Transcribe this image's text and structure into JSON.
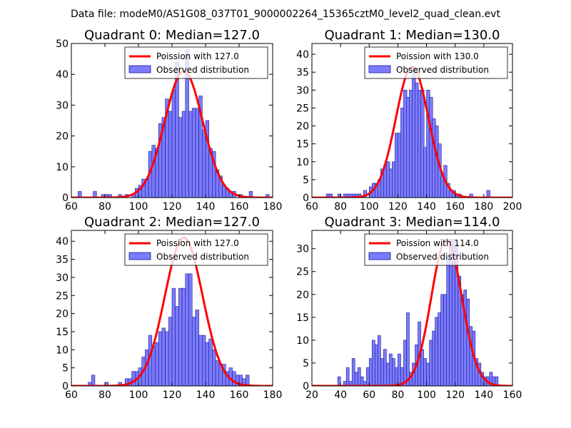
{
  "figure_title": "Data file: modeM0/AS1G08_037T01_9000002264_15365cztM0_level2_quad_clean.evt",
  "colors": {
    "hist_fill": "#7b7bff",
    "hist_edge": "#1a1a8c",
    "curve": "#ff0000"
  },
  "chart_data": [
    {
      "type": "bar",
      "title": "Quadrant 0: Median=127.0",
      "xlim": [
        60,
        180
      ],
      "ylim": [
        0,
        50
      ],
      "xticks": [
        60,
        80,
        100,
        120,
        140,
        160,
        180
      ],
      "yticks": [
        0,
        10,
        20,
        30,
        40,
        50
      ],
      "legend": [
        "Poission with 127.0",
        "Observed distribution"
      ],
      "legend_position": "top-right",
      "bin_width": 2,
      "bins": [
        [
          64,
          2
        ],
        [
          73,
          2
        ],
        [
          78,
          1
        ],
        [
          80,
          1
        ],
        [
          82,
          1
        ],
        [
          88,
          1
        ],
        [
          92,
          1
        ],
        [
          96,
          1
        ],
        [
          98,
          3
        ],
        [
          100,
          4
        ],
        [
          102,
          6
        ],
        [
          104,
          6
        ],
        [
          106,
          15
        ],
        [
          108,
          17
        ],
        [
          110,
          16
        ],
        [
          112,
          24
        ],
        [
          114,
          26
        ],
        [
          116,
          32
        ],
        [
          118,
          28
        ],
        [
          120,
          35
        ],
        [
          122,
          44
        ],
        [
          124,
          26
        ],
        [
          126,
          28
        ],
        [
          128,
          48
        ],
        [
          130,
          28
        ],
        [
          132,
          29
        ],
        [
          134,
          29
        ],
        [
          136,
          33
        ],
        [
          138,
          22
        ],
        [
          140,
          25
        ],
        [
          142,
          16
        ],
        [
          144,
          15
        ],
        [
          146,
          9
        ],
        [
          148,
          7
        ],
        [
          150,
          4
        ],
        [
          152,
          3
        ],
        [
          154,
          2
        ],
        [
          156,
          2
        ],
        [
          160,
          1
        ],
        [
          166,
          2
        ],
        [
          176,
          1
        ]
      ],
      "curve": {
        "mean": 127,
        "peak": 41.0
      }
    },
    {
      "type": "bar",
      "title": "Quadrant 1: Median=130.0",
      "xlim": [
        60,
        200
      ],
      "ylim": [
        0,
        43
      ],
      "xticks": [
        60,
        80,
        100,
        120,
        140,
        160,
        180,
        200
      ],
      "yticks": [
        0,
        5,
        10,
        15,
        20,
        25,
        30,
        35,
        40
      ],
      "legend": [
        "Poission with 130.0",
        "Observed distribution"
      ],
      "legend_position": "top-right",
      "bin_width": 2.3,
      "bins": [
        [
          70,
          1
        ],
        [
          72,
          1
        ],
        [
          78,
          1
        ],
        [
          82,
          1
        ],
        [
          84,
          1
        ],
        [
          86,
          1
        ],
        [
          88,
          1
        ],
        [
          90,
          1
        ],
        [
          92,
          1
        ],
        [
          96,
          2
        ],
        [
          100,
          3
        ],
        [
          102,
          4
        ],
        [
          104,
          4
        ],
        [
          106,
          5
        ],
        [
          108,
          8
        ],
        [
          110,
          9
        ],
        [
          112,
          10
        ],
        [
          114,
          8
        ],
        [
          116,
          10
        ],
        [
          118,
          18
        ],
        [
          120,
          18
        ],
        [
          122,
          25
        ],
        [
          124,
          30
        ],
        [
          126,
          28
        ],
        [
          128,
          30
        ],
        [
          130,
          36
        ],
        [
          132,
          32
        ],
        [
          134,
          30
        ],
        [
          136,
          30
        ],
        [
          138,
          14
        ],
        [
          140,
          30
        ],
        [
          142,
          28
        ],
        [
          144,
          22
        ],
        [
          146,
          20
        ],
        [
          148,
          15
        ],
        [
          150,
          6
        ],
        [
          152,
          9
        ],
        [
          154,
          4
        ],
        [
          156,
          2
        ],
        [
          158,
          2
        ],
        [
          160,
          1
        ],
        [
          162,
          1
        ],
        [
          170,
          1
        ],
        [
          182,
          2
        ]
      ],
      "curve": {
        "mean": 130,
        "peak": 36.5
      }
    },
    {
      "type": "bar",
      "title": "Quadrant 2: Median=127.0",
      "xlim": [
        60,
        180
      ],
      "ylim": [
        0,
        43
      ],
      "xticks": [
        60,
        80,
        100,
        120,
        140,
        160,
        180
      ],
      "yticks": [
        0,
        5,
        10,
        15,
        20,
        25,
        30,
        35,
        40
      ],
      "legend": [
        "Poission with 127.0",
        "Observed distribution"
      ],
      "legend_position": "top-right",
      "bin_width": 2,
      "bins": [
        [
          70,
          1
        ],
        [
          72,
          3
        ],
        [
          80,
          1
        ],
        [
          88,
          1
        ],
        [
          92,
          2
        ],
        [
          94,
          2
        ],
        [
          96,
          4
        ],
        [
          98,
          4
        ],
        [
          100,
          5
        ],
        [
          102,
          8
        ],
        [
          104,
          10
        ],
        [
          106,
          14
        ],
        [
          108,
          11
        ],
        [
          110,
          12
        ],
        [
          112,
          15
        ],
        [
          114,
          16
        ],
        [
          116,
          15
        ],
        [
          118,
          19
        ],
        [
          120,
          27
        ],
        [
          122,
          22
        ],
        [
          124,
          27
        ],
        [
          126,
          27
        ],
        [
          128,
          31
        ],
        [
          130,
          31
        ],
        [
          132,
          19
        ],
        [
          134,
          21
        ],
        [
          136,
          14
        ],
        [
          138,
          14
        ],
        [
          140,
          12
        ],
        [
          142,
          13
        ],
        [
          144,
          10
        ],
        [
          146,
          7
        ],
        [
          148,
          6
        ],
        [
          150,
          6
        ],
        [
          152,
          4
        ],
        [
          154,
          5
        ],
        [
          156,
          4
        ],
        [
          158,
          3
        ],
        [
          160,
          3
        ],
        [
          162,
          2
        ],
        [
          164,
          3
        ]
      ],
      "curve": {
        "mean": 127,
        "peak": 41.0
      }
    },
    {
      "type": "bar",
      "title": "Quadrant 3: Median=114.0",
      "xlim": [
        20,
        160
      ],
      "ylim": [
        0,
        34
      ],
      "xticks": [
        20,
        40,
        60,
        80,
        100,
        120,
        140,
        160
      ],
      "yticks": [
        0,
        5,
        10,
        15,
        20,
        25,
        30
      ],
      "legend": [
        "Poission with 114.0",
        "Observed distribution"
      ],
      "legend_position": "top-right",
      "bin_width": 2,
      "bins": [
        [
          38,
          2
        ],
        [
          42,
          1
        ],
        [
          44,
          4
        ],
        [
          46,
          1
        ],
        [
          48,
          6
        ],
        [
          50,
          3
        ],
        [
          52,
          4
        ],
        [
          54,
          2
        ],
        [
          56,
          1
        ],
        [
          58,
          4
        ],
        [
          60,
          6
        ],
        [
          62,
          10
        ],
        [
          64,
          9
        ],
        [
          66,
          11
        ],
        [
          68,
          6
        ],
        [
          70,
          8
        ],
        [
          72,
          5
        ],
        [
          74,
          7
        ],
        [
          76,
          6
        ],
        [
          78,
          4
        ],
        [
          80,
          7
        ],
        [
          82,
          4
        ],
        [
          84,
          10
        ],
        [
          86,
          16
        ],
        [
          88,
          3
        ],
        [
          90,
          5
        ],
        [
          92,
          9
        ],
        [
          94,
          14
        ],
        [
          96,
          8
        ],
        [
          98,
          6
        ],
        [
          100,
          5
        ],
        [
          102,
          10
        ],
        [
          104,
          12
        ],
        [
          106,
          15
        ],
        [
          108,
          16
        ],
        [
          110,
          20
        ],
        [
          112,
          20
        ],
        [
          114,
          28
        ],
        [
          116,
          32
        ],
        [
          118,
          32
        ],
        [
          120,
          31
        ],
        [
          122,
          24
        ],
        [
          124,
          20
        ],
        [
          126,
          21
        ],
        [
          128,
          19
        ],
        [
          130,
          13
        ],
        [
          132,
          12
        ],
        [
          134,
          6
        ],
        [
          136,
          5
        ],
        [
          138,
          3
        ],
        [
          140,
          2
        ],
        [
          142,
          2
        ],
        [
          144,
          3
        ],
        [
          146,
          2
        ],
        [
          148,
          2
        ]
      ],
      "curve": {
        "mean": 114,
        "peak": 32.0
      }
    }
  ]
}
